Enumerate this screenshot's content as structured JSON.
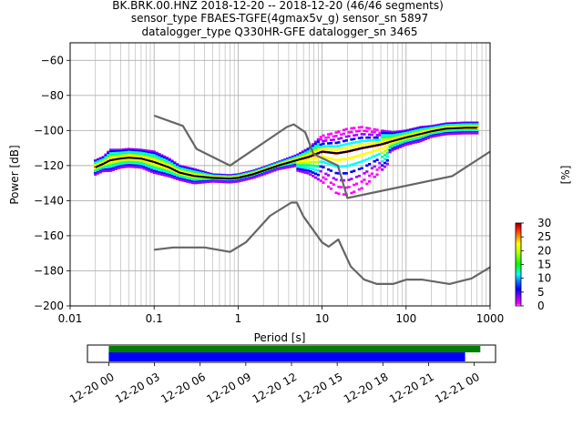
{
  "chart_data": {
    "type": "scatter",
    "title_lines": [
      "BK.BRK.00.HNZ   2018-12-20 -- 2018-12-20  (46/46 segments)",
      "sensor_type FBAES-TGFE(4gmax5v_g) sensor_sn 5897",
      "datalogger_type Q330HR-GFE datalogger_sn 3465"
    ],
    "xlabel": "Period [s]",
    "ylabel": "Power [dB]",
    "x_scale": "log",
    "xlim": [
      0.01,
      1000
    ],
    "ylim": [
      -200,
      -50
    ],
    "xtick_labels": [
      "0.01",
      "0.1",
      "1",
      "10",
      "100",
      "1000"
    ],
    "ytick_labels": [
      "−60",
      "−80",
      "−100",
      "−120",
      "−140",
      "−160",
      "−180",
      "−200"
    ],
    "grid": true,
    "colorbar": {
      "label": "[%]",
      "range": [
        0,
        30
      ],
      "tick_labels": [
        "0",
        "5",
        "10",
        "15",
        "20",
        "25",
        "30"
      ]
    },
    "series": [
      {
        "name": "mode",
        "color": "#000000",
        "x": [
          0.02,
          0.025,
          0.03,
          0.04,
          0.05,
          0.07,
          0.1,
          0.15,
          0.2,
          0.3,
          0.5,
          0.8,
          1,
          1.5,
          2,
          3,
          5,
          7,
          10,
          15,
          20,
          30,
          50,
          70,
          100,
          150,
          200,
          300,
          500,
          700
        ],
        "y": [
          -121,
          -119,
          -117,
          -116,
          -115.5,
          -116,
          -118,
          -121,
          -124,
          -126,
          -127,
          -127.5,
          -127,
          -125,
          -123,
          -120,
          -117,
          -115,
          -112,
          -113,
          -112,
          -110,
          -108,
          -106,
          -104,
          -102,
          -100.5,
          -99,
          -98.5,
          -98.5
        ]
      },
      {
        "name": "NHNM",
        "color": "#666666",
        "x": [
          0.1,
          0.22,
          0.32,
          0.8,
          3.8,
          4.6,
          6.3,
          7.9,
          15.4,
          20,
          354.8,
          1000
        ],
        "y": [
          -91.5,
          -97.4,
          -110.5,
          -120,
          -98,
          -96.5,
          -101,
          -113.5,
          -120,
          -138.5,
          -126,
          -112
        ]
      },
      {
        "name": "NLNM",
        "color": "#666666",
        "x": [
          0.1,
          0.17,
          0.4,
          0.8,
          1.24,
          2.4,
          4.3,
          5,
          6,
          10,
          12,
          15.6,
          21.9,
          31.6,
          45,
          70,
          101,
          154,
          328,
          600,
          1000
        ],
        "y": [
          -168,
          -166.7,
          -166.7,
          -169.2,
          -163.7,
          -148.6,
          -141.1,
          -141.1,
          -149,
          -163.8,
          -166.2,
          -162.1,
          -177.5,
          -185,
          -187.5,
          -187.5,
          -185,
          -185,
          -187.5,
          -184.4,
          -178
        ]
      }
    ],
    "density": {
      "x": [
        0.02,
        0.025,
        0.03,
        0.04,
        0.05,
        0.07,
        0.1,
        0.15,
        0.2,
        0.3,
        0.5,
        0.8,
        1,
        1.5,
        2,
        3,
        5,
        7,
        10,
        15,
        20,
        30,
        50,
        70,
        100,
        150,
        200,
        300,
        500,
        700
      ],
      "spread_db": [
        4,
        4,
        6,
        5,
        5,
        5,
        6,
        5,
        4,
        4,
        2,
        2,
        2,
        2,
        2,
        2,
        3,
        5,
        9,
        12,
        13,
        12,
        8,
        5,
        4,
        4,
        3,
        3,
        3,
        3
      ]
    },
    "timeline": {
      "tick_labels": [
        "12-20 00",
        "12-20 03",
        "12-20 06",
        "12-20 09",
        "12-20 12",
        "12-20 15",
        "12-20 18",
        "12-20 21",
        "12-21 00"
      ],
      "range_hours": [
        -1.4,
        25.4
      ],
      "green_hours": [
        0,
        24.4
      ],
      "blue_hours": [
        0,
        23.4
      ],
      "green_color": "#008000",
      "blue_color": "#0000ff"
    }
  }
}
